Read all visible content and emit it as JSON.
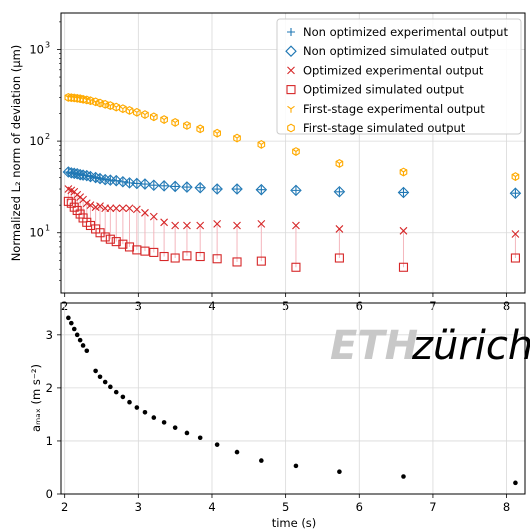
{
  "colors": {
    "blue": "#1f77b4",
    "red": "#d62728",
    "orange": "#ffaa00",
    "pink_stem": "#f4b6bd"
  },
  "chart_data": [
    {
      "type": "scatter",
      "ylabel": "Normalized  L₂ norm of deviation (µm)",
      "yscale": "log",
      "ylim": [
        2.2,
        2500
      ],
      "xlim": [
        1.95,
        8.25
      ],
      "grid": true,
      "legend_position": "top-right",
      "x_ticks": [
        2,
        3,
        4,
        5,
        6,
        7,
        8
      ],
      "x_tick_labels": [
        "2",
        "3",
        "4",
        "5",
        "6",
        "7",
        "8"
      ],
      "y_tick_labels": [
        {
          "base": "10",
          "exp": "1",
          "value": 10
        },
        {
          "base": "10",
          "exp": "2",
          "value": 100
        },
        {
          "base": "10",
          "exp": "3",
          "value": 1000
        }
      ],
      "series": [
        {
          "name": "Non optimized experimental output",
          "marker": "plus",
          "color": "#1f77b4",
          "x": [
            2.05,
            2.09,
            2.13,
            2.17,
            2.21,
            2.25,
            2.3,
            2.35,
            2.42,
            2.48,
            2.55,
            2.62,
            2.7,
            2.79,
            2.88,
            2.98,
            3.09,
            3.21,
            3.35,
            3.5,
            3.66,
            3.84,
            4.07,
            4.34,
            4.67,
            5.14,
            5.73,
            6.6,
            8.12
          ],
          "y": [
            46,
            45,
            44.5,
            44,
            43,
            42.5,
            42,
            41,
            40,
            39,
            38,
            37.5,
            37,
            36,
            35,
            34.5,
            34,
            33,
            32.5,
            32,
            31.5,
            31,
            30,
            30,
            29.5,
            29,
            28,
            27.5,
            27
          ]
        },
        {
          "name": "Non optimized simulated output",
          "marker": "diamond",
          "color": "#1f77b4",
          "x": [
            2.05,
            2.09,
            2.13,
            2.17,
            2.21,
            2.25,
            2.3,
            2.35,
            2.42,
            2.48,
            2.55,
            2.62,
            2.7,
            2.79,
            2.88,
            2.98,
            3.09,
            3.21,
            3.35,
            3.5,
            3.66,
            3.84,
            4.07,
            4.34,
            4.67,
            5.14,
            5.73,
            6.6,
            8.12
          ],
          "y": [
            46,
            45,
            44.5,
            44,
            43,
            42.5,
            42,
            41,
            40,
            39,
            38,
            37.5,
            37,
            36,
            35,
            34.5,
            34,
            33,
            32.5,
            32,
            31.5,
            31,
            30,
            30,
            29.5,
            29,
            28,
            27.5,
            27
          ]
        },
        {
          "name": "Optimized experimental output",
          "marker": "x",
          "color": "#d62728",
          "x": [
            2.05,
            2.09,
            2.13,
            2.17,
            2.21,
            2.25,
            2.3,
            2.35,
            2.42,
            2.48,
            2.55,
            2.62,
            2.7,
            2.79,
            2.88,
            2.98,
            3.09,
            3.21,
            3.35,
            3.5,
            3.66,
            3.84,
            4.07,
            4.34,
            4.67,
            5.14,
            5.73,
            6.6,
            8.12
          ],
          "y": [
            30,
            29,
            28,
            26,
            24.5,
            23,
            21,
            20,
            19,
            19.5,
            18.5,
            18.5,
            18.5,
            18.5,
            18.5,
            18,
            16.5,
            15,
            13,
            12,
            12,
            12,
            12.5,
            12,
            12.5,
            12,
            11,
            10.5,
            9.7
          ]
        },
        {
          "name": "Optimized simulated output",
          "marker": "square",
          "color": "#d62728",
          "x": [
            2.05,
            2.09,
            2.13,
            2.17,
            2.21,
            2.25,
            2.3,
            2.35,
            2.42,
            2.48,
            2.55,
            2.62,
            2.7,
            2.79,
            2.88,
            2.98,
            3.09,
            3.21,
            3.35,
            3.5,
            3.66,
            3.84,
            4.07,
            4.34,
            4.67,
            5.14,
            5.73,
            6.6,
            8.12
          ],
          "y": [
            22,
            21,
            19,
            17.5,
            16,
            14.5,
            13,
            12,
            11,
            10,
            9,
            8.5,
            8,
            7.5,
            7,
            6.5,
            6.3,
            6.1,
            5.5,
            5.3,
            5.6,
            5.5,
            5.2,
            4.8,
            4.9,
            4.2,
            5.3,
            4.2,
            5.3
          ]
        },
        {
          "name": "First-stage experimental output",
          "marker": "tri_down",
          "color": "#ffaa00",
          "x": [
            2.05,
            2.09,
            2.13,
            2.17,
            2.21,
            2.25,
            2.3,
            2.35,
            2.42,
            2.48,
            2.55,
            2.62,
            2.7,
            2.79,
            2.88,
            2.98,
            3.09,
            3.21,
            3.35,
            3.5,
            3.66,
            3.84,
            4.07,
            4.34,
            4.67,
            5.14,
            5.73,
            6.6,
            8.12
          ],
          "y": [
            300,
            298,
            296,
            293,
            290,
            286,
            281,
            276,
            268,
            260,
            252,
            244,
            235,
            226,
            216,
            206,
            195,
            184,
            172,
            160,
            148,
            136,
            122,
            108,
            92,
            77,
            57,
            46,
            41
          ]
        },
        {
          "name": "First-stage simulated output",
          "marker": "hexagon",
          "color": "#ffaa00",
          "x": [
            2.05,
            2.09,
            2.13,
            2.17,
            2.21,
            2.25,
            2.3,
            2.35,
            2.42,
            2.48,
            2.55,
            2.62,
            2.7,
            2.79,
            2.88,
            2.98,
            3.09,
            3.21,
            3.35,
            3.5,
            3.66,
            3.84,
            4.07,
            4.34,
            4.67,
            5.14,
            5.73,
            6.6,
            8.12
          ],
          "y": [
            300,
            298,
            296,
            293,
            290,
            286,
            281,
            276,
            268,
            260,
            252,
            244,
            235,
            226,
            216,
            206,
            195,
            184,
            172,
            160,
            148,
            136,
            122,
            108,
            92,
            77,
            57,
            46,
            41
          ]
        }
      ]
    },
    {
      "type": "scatter",
      "xlabel": "time (s)",
      "ylabel": "aₘₐₓ (m s⁻²)",
      "ylim": [
        0,
        3.6
      ],
      "xlim": [
        1.95,
        8.25
      ],
      "grid": true,
      "x_ticks": [
        2,
        3,
        4,
        5,
        6,
        7,
        8
      ],
      "x_tick_labels": [
        "2",
        "3",
        "4",
        "5",
        "6",
        "7",
        "8"
      ],
      "y_ticks": [
        0,
        1,
        2,
        3
      ],
      "y_tick_labels": [
        "0",
        "1",
        "2",
        "3"
      ],
      "series": [
        {
          "marker": "dot",
          "color": "#000000",
          "x": [
            2.05,
            2.09,
            2.13,
            2.17,
            2.21,
            2.25,
            2.3,
            2.42,
            2.48,
            2.55,
            2.62,
            2.7,
            2.79,
            2.88,
            2.98,
            3.09,
            3.21,
            3.35,
            3.5,
            3.66,
            3.84,
            4.07,
            4.34,
            4.67,
            5.14,
            5.73,
            6.6,
            8.12
          ],
          "y": [
            3.32,
            3.22,
            3.11,
            3.0,
            2.9,
            2.8,
            2.7,
            2.32,
            2.21,
            2.11,
            2.02,
            1.92,
            1.83,
            1.73,
            1.63,
            1.54,
            1.44,
            1.35,
            1.25,
            1.15,
            1.06,
            0.93,
            0.79,
            0.63,
            0.53,
            0.42,
            0.33,
            0.21
          ]
        }
      ]
    }
  ],
  "logo": {
    "part1": "ETH",
    "part2": "zürich"
  }
}
